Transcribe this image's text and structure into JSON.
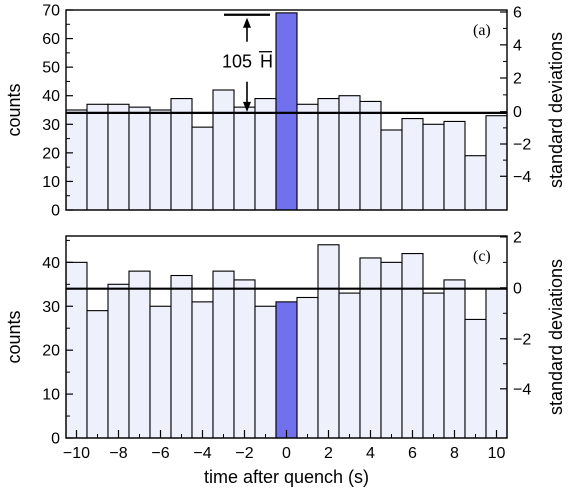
{
  "chart_data": [
    {
      "type": "bar",
      "panel_label": "(a)",
      "x": [
        -10,
        -9,
        -8,
        -7,
        -6,
        -5,
        -4,
        -3,
        -2,
        -1,
        0,
        1,
        2,
        3,
        4,
        5,
        6,
        7,
        8,
        9,
        10
      ],
      "values": [
        35,
        37,
        37,
        36,
        35,
        39,
        29,
        42,
        36,
        39,
        69,
        37,
        39,
        40,
        38,
        28,
        32,
        30,
        31,
        19,
        33
      ],
      "highlight_x": 0,
      "mean_line": 34,
      "ylim": [
        0,
        70
      ],
      "yticks": [
        0,
        10,
        20,
        30,
        40,
        50,
        60,
        70
      ],
      "ylabel": "counts",
      "y2label": "standard deviations",
      "y2ticks": [
        {
          "label": "6",
          "count": 69.3
        },
        {
          "label": "4",
          "count": 57.8
        },
        {
          "label": "2",
          "count": 46.2
        },
        {
          "label": "0",
          "count": 34.4
        },
        {
          "label": "−2",
          "count": 23.1
        },
        {
          "label": "−4",
          "count": 11.8
        }
      ],
      "annotation": {
        "label": "105",
        "overline_label": "H",
        "from_count": 34,
        "to_count": 68
      }
    },
    {
      "type": "bar",
      "panel_label": "(c)",
      "x": [
        -10,
        -9,
        -8,
        -7,
        -6,
        -5,
        -4,
        -3,
        -2,
        -1,
        0,
        1,
        2,
        3,
        4,
        5,
        6,
        7,
        8,
        9,
        10
      ],
      "values": [
        40,
        29,
        35,
        38,
        30,
        37,
        31,
        38,
        36,
        30,
        31,
        32,
        44,
        33,
        41,
        40,
        42,
        33,
        36,
        27,
        34
      ],
      "highlight_x": 0,
      "mean_line": 34,
      "ylim": [
        0,
        46
      ],
      "yticks": [
        0,
        10,
        20,
        30,
        40
      ],
      "ylabel": "counts",
      "y2label": "standard deviations",
      "y2ticks": [
        {
          "label": "2",
          "count": 45.8
        },
        {
          "label": "0",
          "count": 34.2
        },
        {
          "label": "−2",
          "count": 22.6
        },
        {
          "label": "−4",
          "count": 11.2
        }
      ],
      "xlabel": "time after quench (s)",
      "xticks": [
        -10,
        -8,
        -6,
        -4,
        -2,
        0,
        2,
        4,
        6,
        8,
        10
      ],
      "xtick_labels": [
        "−10",
        "−8",
        "−6",
        "−4",
        "−2",
        "0",
        "2",
        "4",
        "6",
        "8",
        "10"
      ]
    }
  ],
  "colors": {
    "bar_fill": "#eef0fb",
    "bar_highlight": "#7171ee",
    "bar_stroke": "#000000",
    "mean_line": "#000000"
  }
}
